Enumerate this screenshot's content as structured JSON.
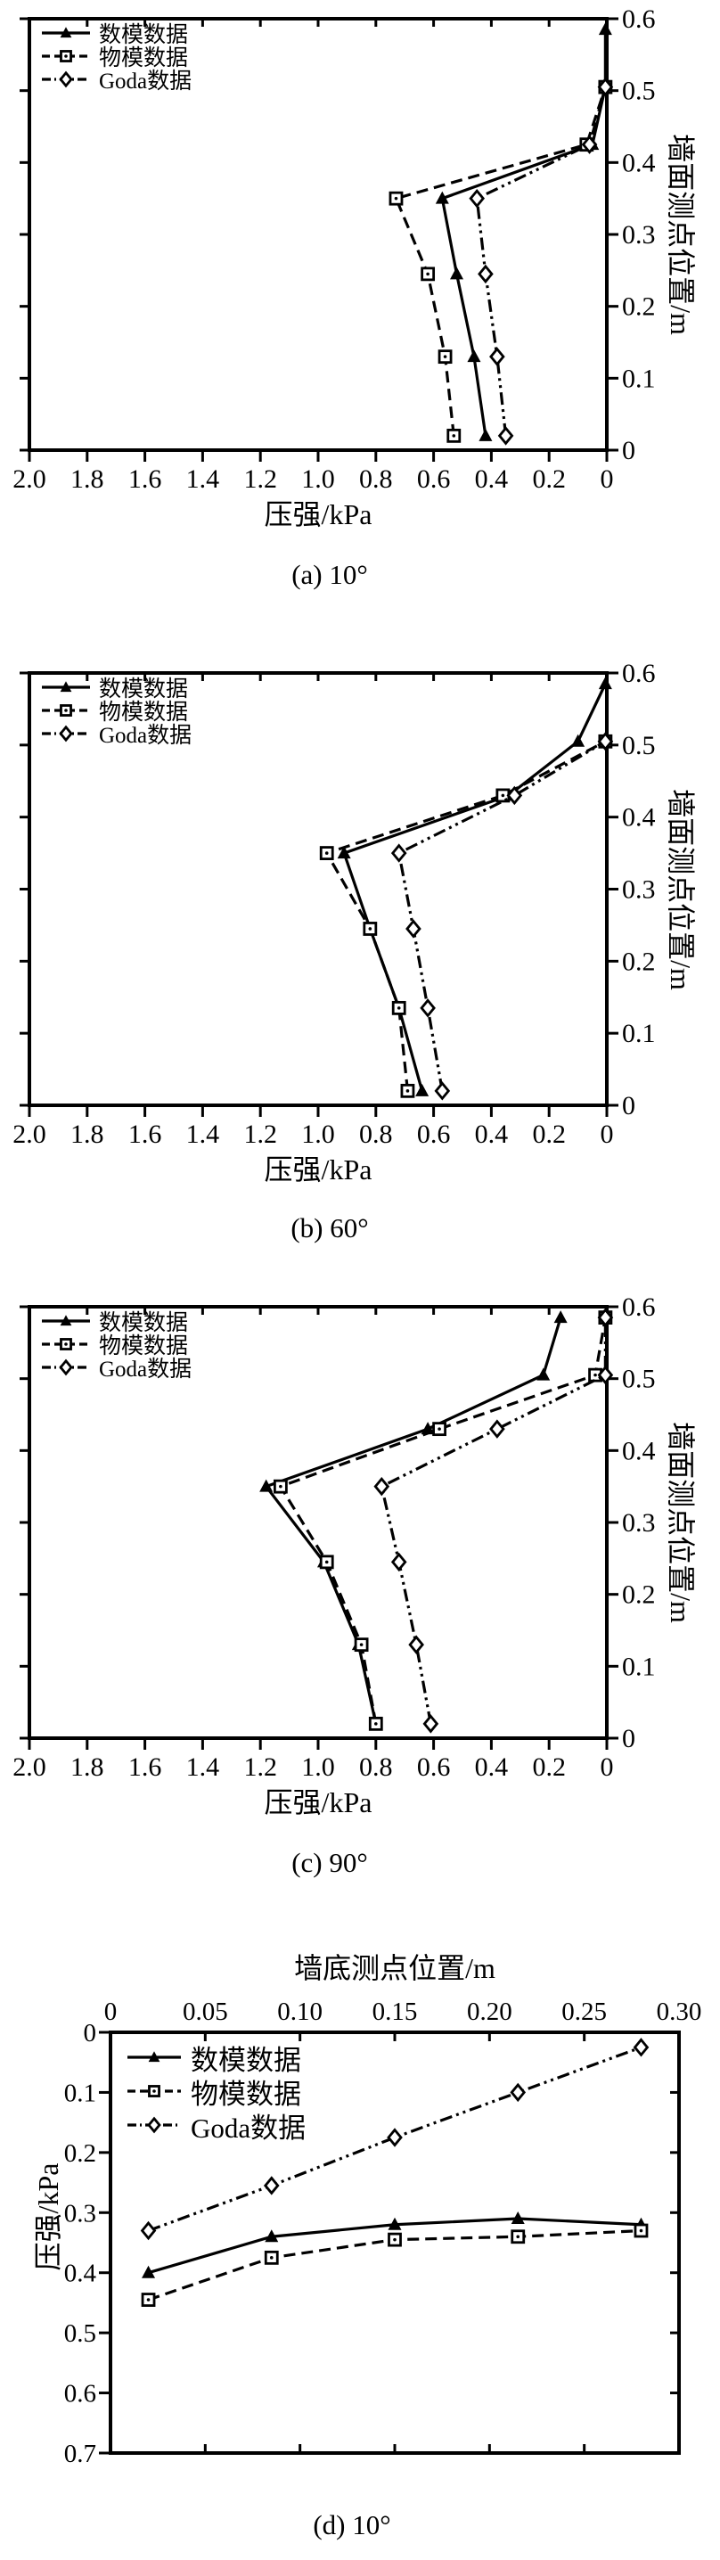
{
  "page": {
    "background": "#ffffff",
    "ink": "#000000"
  },
  "legend": {
    "items": [
      {
        "label": "数模数据",
        "marker": "triangle",
        "line": "solid"
      },
      {
        "label": "物模数据",
        "marker": "square",
        "line": "dashed"
      },
      {
        "label": "Goda数据",
        "marker": "diamond",
        "line": "dashdot"
      }
    ]
  },
  "chart_data": [
    {
      "id": "a",
      "type": "line",
      "caption": "(a) 10°",
      "xlabel": "压强/kPa",
      "ylabel": "墙面测点位置/m",
      "x_axis": {
        "min": 0,
        "max": 2.0,
        "reversed": true,
        "labeled_side": "bottom",
        "tick_values": [
          2.0,
          1.8,
          1.6,
          1.4,
          1.2,
          1.0,
          0.8,
          0.6,
          0.4,
          0.2,
          0
        ],
        "tick_labels": [
          "2.0",
          "1.8",
          "1.6",
          "1.4",
          "1.2",
          "1.0",
          "0.8",
          "0.6",
          "0.4",
          "0.2",
          "0"
        ]
      },
      "y_axis": {
        "min": 0,
        "max": 0.6,
        "inverted": false,
        "labeled_side": "right",
        "tick_values": [
          0,
          0.1,
          0.2,
          0.3,
          0.4,
          0.5,
          0.6
        ],
        "tick_labels": [
          "0",
          "0.1",
          "0.2",
          "0.3",
          "0.4",
          "0.5",
          "0.6"
        ]
      },
      "series": [
        {
          "name": "数模数据",
          "marker": "triangle",
          "line": "solid",
          "points": [
            [
              0.42,
              0.02
            ],
            [
              0.46,
              0.13
            ],
            [
              0.52,
              0.245
            ],
            [
              0.57,
              0.35
            ],
            [
              0.05,
              0.425
            ],
            [
              0.005,
              0.505
            ],
            [
              0.005,
              0.585
            ]
          ]
        },
        {
          "name": "物模数据",
          "marker": "square",
          "line": "dashed",
          "points": [
            [
              0.53,
              0.02
            ],
            [
              0.56,
              0.13
            ],
            [
              0.62,
              0.245
            ],
            [
              0.73,
              0.35
            ],
            [
              0.07,
              0.425
            ],
            [
              0.005,
              0.505
            ]
          ]
        },
        {
          "name": "Goda数据",
          "marker": "diamond",
          "line": "dashdot",
          "points": [
            [
              0.35,
              0.02
            ],
            [
              0.38,
              0.13
            ],
            [
              0.42,
              0.245
            ],
            [
              0.45,
              0.35
            ],
            [
              0.06,
              0.425
            ],
            [
              0.005,
              0.505
            ]
          ]
        }
      ]
    },
    {
      "id": "b",
      "type": "line",
      "caption": "(b) 60°",
      "xlabel": "压强/kPa",
      "ylabel": "墙面测点位置/m",
      "x_axis": {
        "min": 0,
        "max": 2.0,
        "reversed": true,
        "labeled_side": "bottom",
        "tick_values": [
          2.0,
          1.8,
          1.6,
          1.4,
          1.2,
          1.0,
          0.8,
          0.6,
          0.4,
          0.2,
          0
        ],
        "tick_labels": [
          "2.0",
          "1.8",
          "1.6",
          "1.4",
          "1.2",
          "1.0",
          "0.8",
          "0.6",
          "0.4",
          "0.2",
          "0"
        ]
      },
      "y_axis": {
        "min": 0,
        "max": 0.6,
        "inverted": false,
        "labeled_side": "right",
        "tick_values": [
          0,
          0.1,
          0.2,
          0.3,
          0.4,
          0.5,
          0.6
        ],
        "tick_labels": [
          "0",
          "0.1",
          "0.2",
          "0.3",
          "0.4",
          "0.5",
          "0.6"
        ]
      },
      "series": [
        {
          "name": "数模数据",
          "marker": "triangle",
          "line": "solid",
          "points": [
            [
              0.64,
              0.02
            ],
            [
              0.72,
              0.135
            ],
            [
              0.82,
              0.245
            ],
            [
              0.91,
              0.35
            ],
            [
              0.34,
              0.43
            ],
            [
              0.1,
              0.505
            ],
            [
              0.005,
              0.585
            ]
          ]
        },
        {
          "name": "物模数据",
          "marker": "square",
          "line": "dashed",
          "points": [
            [
              0.69,
              0.02
            ],
            [
              0.72,
              0.135
            ],
            [
              0.82,
              0.245
            ],
            [
              0.97,
              0.35
            ],
            [
              0.36,
              0.43
            ],
            [
              0.005,
              0.505
            ]
          ]
        },
        {
          "name": "Goda数据",
          "marker": "diamond",
          "line": "dashdot",
          "points": [
            [
              0.57,
              0.02
            ],
            [
              0.62,
              0.135
            ],
            [
              0.67,
              0.245
            ],
            [
              0.72,
              0.35
            ],
            [
              0.32,
              0.43
            ],
            [
              0.005,
              0.505
            ]
          ]
        }
      ]
    },
    {
      "id": "c",
      "type": "line",
      "caption": "(c) 90°",
      "xlabel": "压强/kPa",
      "ylabel": "墙面测点位置/m",
      "x_axis": {
        "min": 0,
        "max": 2.0,
        "reversed": true,
        "labeled_side": "bottom",
        "tick_values": [
          2.0,
          1.8,
          1.6,
          1.4,
          1.2,
          1.0,
          0.8,
          0.6,
          0.4,
          0.2,
          0
        ],
        "tick_labels": [
          "2.0",
          "1.8",
          "1.6",
          "1.4",
          "1.2",
          "1.0",
          "0.8",
          "0.6",
          "0.4",
          "0.2",
          "0"
        ]
      },
      "y_axis": {
        "min": 0,
        "max": 0.6,
        "inverted": false,
        "labeled_side": "right",
        "tick_values": [
          0,
          0.1,
          0.2,
          0.3,
          0.4,
          0.5,
          0.6
        ],
        "tick_labels": [
          "0",
          "0.1",
          "0.2",
          "0.3",
          "0.4",
          "0.5",
          "0.6"
        ]
      },
      "series": [
        {
          "name": "数模数据",
          "marker": "triangle",
          "line": "solid",
          "points": [
            [
              0.8,
              0.02
            ],
            [
              0.86,
              0.13
            ],
            [
              0.98,
              0.245
            ],
            [
              1.18,
              0.35
            ],
            [
              0.62,
              0.43
            ],
            [
              0.22,
              0.505
            ],
            [
              0.16,
              0.585
            ]
          ]
        },
        {
          "name": "物模数据",
          "marker": "square",
          "line": "dashed",
          "points": [
            [
              0.8,
              0.02
            ],
            [
              0.85,
              0.13
            ],
            [
              0.97,
              0.245
            ],
            [
              1.13,
              0.35
            ],
            [
              0.58,
              0.43
            ],
            [
              0.04,
              0.505
            ],
            [
              0.005,
              0.585
            ]
          ]
        },
        {
          "name": "Goda数据",
          "marker": "diamond",
          "line": "dashdot",
          "points": [
            [
              0.61,
              0.02
            ],
            [
              0.66,
              0.13
            ],
            [
              0.72,
              0.245
            ],
            [
              0.78,
              0.35
            ],
            [
              0.38,
              0.43
            ],
            [
              0.005,
              0.505
            ],
            [
              0.005,
              0.585
            ]
          ]
        }
      ]
    },
    {
      "id": "d",
      "type": "line",
      "caption": "(d) 10°",
      "xlabel": "墙底测点位置/m",
      "ylabel": "压强/kPa",
      "x_axis": {
        "min": 0,
        "max": 0.3,
        "reversed": false,
        "labeled_side": "top",
        "tick_values": [
          0,
          0.05,
          0.1,
          0.15,
          0.2,
          0.25,
          0.3
        ],
        "tick_labels": [
          "0",
          "0.05",
          "0.10",
          "0.15",
          "0.20",
          "0.25",
          "0.30"
        ]
      },
      "y_axis": {
        "min": 0,
        "max": 0.7,
        "inverted": true,
        "labeled_side": "left",
        "tick_values": [
          0,
          0.1,
          0.2,
          0.3,
          0.4,
          0.5,
          0.6,
          0.7
        ],
        "tick_labels": [
          "0",
          "0.1",
          "0.2",
          "0.3",
          "0.4",
          "0.5",
          "0.6",
          "0.7"
        ]
      },
      "series": [
        {
          "name": "数模数据",
          "marker": "triangle",
          "line": "solid",
          "points": [
            [
              0.02,
              0.4
            ],
            [
              0.085,
              0.34
            ],
            [
              0.15,
              0.32
            ],
            [
              0.215,
              0.31
            ],
            [
              0.28,
              0.32
            ]
          ]
        },
        {
          "name": "物模数据",
          "marker": "square",
          "line": "dashed",
          "points": [
            [
              0.02,
              0.445
            ],
            [
              0.085,
              0.375
            ],
            [
              0.15,
              0.345
            ],
            [
              0.215,
              0.34
            ],
            [
              0.28,
              0.33
            ]
          ]
        },
        {
          "name": "Goda数据",
          "marker": "diamond",
          "line": "dashdot",
          "points": [
            [
              0.02,
              0.33
            ],
            [
              0.085,
              0.255
            ],
            [
              0.15,
              0.175
            ],
            [
              0.215,
              0.1
            ],
            [
              0.28,
              0.025
            ]
          ]
        }
      ]
    }
  ]
}
